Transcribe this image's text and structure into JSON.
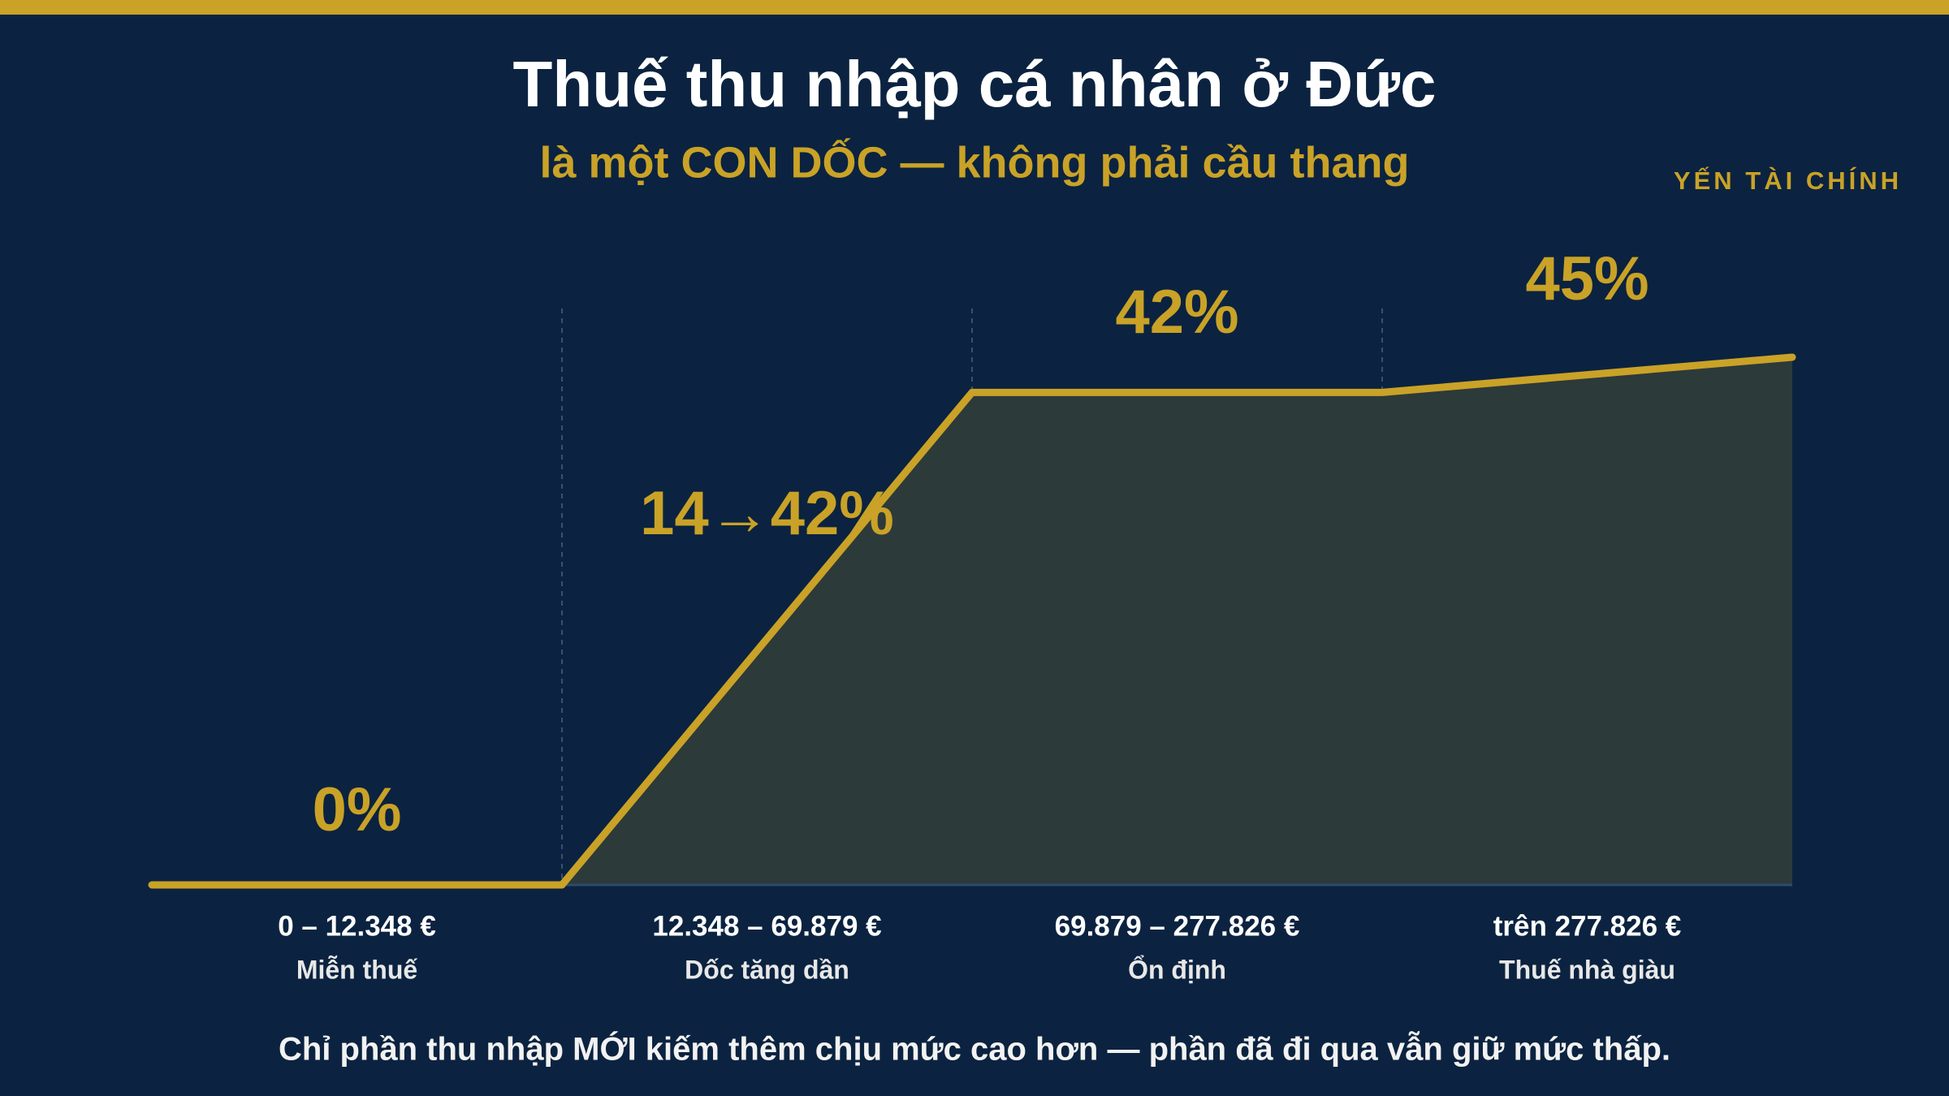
{
  "chart_data": {
    "type": "line",
    "title": "Thuế thu nhập cá nhân ở Đức",
    "subtitle": "là một CON DỐC — không phải cầu thang",
    "brand": "YẾN TÀI CHÍNH",
    "values": [
      0,
      0,
      42,
      42,
      45
    ],
    "color": "#c9a227",
    "segments": [
      {
        "range": "0 – 12.348 €",
        "name": "Miễn thuế",
        "rate": "0%"
      },
      {
        "range": "12.348 – 69.879 €",
        "name": "Dốc tăng dần",
        "rate": "14→42%"
      },
      {
        "range": "69.879 – 277.826 €",
        "name": "Ổn định",
        "rate": "42%"
      },
      {
        "range": "trên 277.826 €",
        "name": "Thuế nhà giàu",
        "rate": "45%"
      }
    ],
    "footnote": "Chỉ phần thu nhập MỚI kiếm thêm chịu mức cao hơn — phần đã đi qua vẫn giữ mức thấp."
  }
}
